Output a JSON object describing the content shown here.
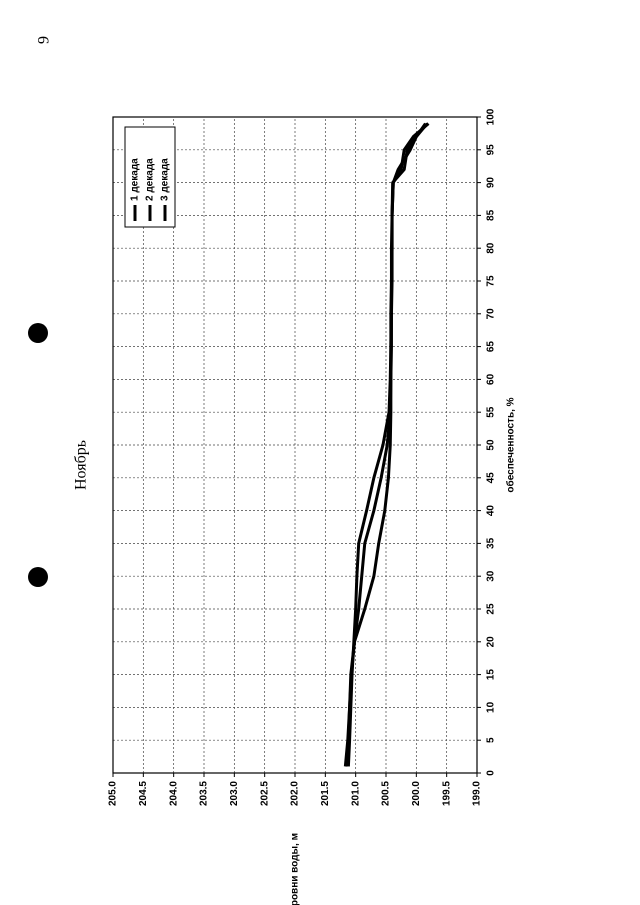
{
  "page_number": "9",
  "page_title": "Ноябрь",
  "chart_data": {
    "type": "line",
    "x_label": "обеспеченность, %",
    "y_label": "уровни воды, м",
    "x": [
      1,
      5,
      10,
      15,
      20,
      25,
      30,
      35,
      40,
      45,
      50,
      55,
      60,
      65,
      70,
      75,
      80,
      85,
      90,
      92,
      95,
      97,
      99
    ],
    "series": [
      {
        "name": "1 декада",
        "color": "#000000",
        "values": [
          201.17,
          201.13,
          201.1,
          201.08,
          201.02,
          200.85,
          200.7,
          200.62,
          200.52,
          200.46,
          200.43,
          200.42,
          200.42,
          200.41,
          200.41,
          200.4,
          200.4,
          200.4,
          200.39,
          200.2,
          200.15,
          200.0,
          199.85
        ]
      },
      {
        "name": "2 декада",
        "color": "#000000",
        "values": [
          201.15,
          201.12,
          201.1,
          201.07,
          201.02,
          200.95,
          200.9,
          200.85,
          200.7,
          200.58,
          200.48,
          200.43,
          200.42,
          200.42,
          200.41,
          200.41,
          200.4,
          200.4,
          200.38,
          200.3,
          200.1,
          200.0,
          199.82
        ]
      },
      {
        "name": "3 декада",
        "color": "#000000",
        "values": [
          201.12,
          201.1,
          201.08,
          201.06,
          201.03,
          201.0,
          200.98,
          200.95,
          200.82,
          200.7,
          200.55,
          200.45,
          200.43,
          200.42,
          200.42,
          200.41,
          200.41,
          200.4,
          200.38,
          200.25,
          200.2,
          200.05,
          199.8
        ]
      }
    ],
    "xlim": [
      0,
      100
    ],
    "xticks": [
      0,
      5,
      10,
      15,
      20,
      25,
      30,
      35,
      40,
      45,
      50,
      55,
      60,
      65,
      70,
      75,
      80,
      85,
      90,
      95,
      100
    ],
    "ylim": [
      199,
      205
    ],
    "yticks": [
      {
        "value": 199,
        "label": "199.0"
      },
      {
        "value": 199.5,
        "label": "199.5"
      },
      {
        "value": 200,
        "label": "200.0"
      },
      {
        "value": 200.5,
        "label": "200.5"
      },
      {
        "value": 201,
        "label": "201.0"
      },
      {
        "value": 201.5,
        "label": "201.5"
      },
      {
        "value": 202,
        "label": "202.0"
      },
      {
        "value": 202.5,
        "label": "202.5"
      },
      {
        "value": 203,
        "label": "203.0"
      },
      {
        "value": 203.5,
        "label": "203.5"
      },
      {
        "value": 204,
        "label": "204.0"
      },
      {
        "value": 204.5,
        "label": "204.5"
      },
      {
        "value": 205,
        "label": "205.0"
      }
    ],
    "grid": true,
    "legend": "top-right"
  }
}
